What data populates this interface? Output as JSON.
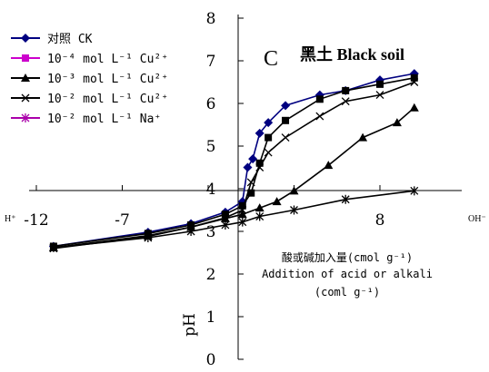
{
  "chart_data": {
    "type": "line",
    "panel_letter": "C",
    "title": "黑土 Black soil",
    "xlabel_zh": "酸或碱加入量(cmol g⁻¹)",
    "xlabel_en": "Addition of acid or alkali",
    "xlabel_unit": "(coml g⁻¹)",
    "ylabel": "pH",
    "x_left_label": "H⁺",
    "x_right_label": "OH⁻",
    "xlim": [
      -13,
      11
    ],
    "ylim": [
      0,
      8
    ],
    "x_ticks": [
      -12,
      -7,
      -2,
      3,
      8
    ],
    "x_tick_labels": [
      "-12",
      "-7",
      "",
      "",
      "8"
    ],
    "y_ticks": [
      0,
      1,
      2,
      3,
      4,
      5,
      6,
      7,
      8
    ],
    "grid": false,
    "legend_position": "top-left",
    "series": [
      {
        "name": "对照 CK",
        "color": "#000080",
        "marker": "diamond",
        "points": [
          [
            -11,
            2.65
          ],
          [
            -5.5,
            2.98
          ],
          [
            -3,
            3.18
          ],
          [
            -1,
            3.45
          ],
          [
            0,
            3.7
          ],
          [
            0.3,
            4.5
          ],
          [
            0.6,
            4.7
          ],
          [
            1,
            5.3
          ],
          [
            1.5,
            5.55
          ],
          [
            2.5,
            5.95
          ],
          [
            4.5,
            6.2
          ],
          [
            6,
            6.3
          ],
          [
            8,
            6.55
          ],
          [
            10,
            6.7
          ]
        ]
      },
      {
        "name": "10⁻⁴ mol L⁻¹ Cu²⁺",
        "color": "#000000",
        "marker": "square",
        "points": [
          [
            -11,
            2.65
          ],
          [
            -5.5,
            2.95
          ],
          [
            -3,
            3.15
          ],
          [
            -1,
            3.4
          ],
          [
            0,
            3.6
          ],
          [
            0.5,
            3.9
          ],
          [
            1,
            4.6
          ],
          [
            1.5,
            5.2
          ],
          [
            2.5,
            5.6
          ],
          [
            4.5,
            6.1
          ],
          [
            6,
            6.3
          ],
          [
            8,
            6.45
          ],
          [
            10,
            6.6
          ]
        ]
      },
      {
        "name": "10⁻³ mol L⁻¹ Cu²⁺",
        "color": "#000000",
        "marker": "triangle",
        "points": [
          [
            -11,
            2.62
          ],
          [
            -5.5,
            2.9
          ],
          [
            -3,
            3.1
          ],
          [
            -1,
            3.3
          ],
          [
            0,
            3.4
          ],
          [
            1,
            3.55
          ],
          [
            2,
            3.7
          ],
          [
            3,
            3.95
          ],
          [
            5,
            4.55
          ],
          [
            7,
            5.2
          ],
          [
            9,
            5.55
          ],
          [
            10,
            5.9
          ]
        ]
      },
      {
        "name": "10⁻² mol L⁻¹ Cu²⁺",
        "color": "#000000",
        "marker": "x",
        "points": [
          [
            -11,
            2.6
          ],
          [
            -5.5,
            2.88
          ],
          [
            -3,
            3.1
          ],
          [
            -1,
            3.32
          ],
          [
            0,
            3.5
          ],
          [
            0.5,
            4.15
          ],
          [
            1,
            4.5
          ],
          [
            1.5,
            4.85
          ],
          [
            2.5,
            5.2
          ],
          [
            4.5,
            5.7
          ],
          [
            6,
            6.05
          ],
          [
            8,
            6.2
          ],
          [
            10,
            6.5
          ]
        ]
      },
      {
        "name": "10⁻² mol L⁻¹ Na⁺",
        "color": "#000000",
        "marker": "asterisk",
        "points": [
          [
            -11,
            2.62
          ],
          [
            -5.5,
            2.85
          ],
          [
            -3,
            3.0
          ],
          [
            -1,
            3.15
          ],
          [
            0,
            3.22
          ],
          [
            1,
            3.35
          ],
          [
            3,
            3.5
          ],
          [
            6,
            3.75
          ],
          [
            10,
            3.95
          ]
        ]
      }
    ],
    "legend_colors": [
      "#000080",
      "#cc00cc",
      "#000000",
      "#000000",
      "#aa00aa"
    ]
  }
}
